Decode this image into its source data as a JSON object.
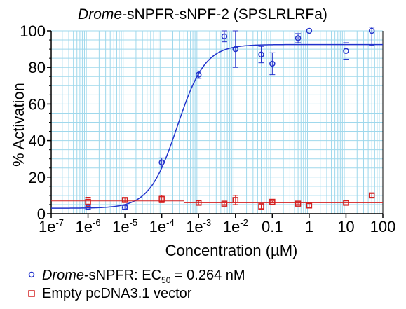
{
  "chart_data": {
    "type": "scatter",
    "title": {
      "italic": "Drome",
      "rest": "-sNPFR-sNPF-2 (SPSLRLRFa)"
    },
    "xlabel": "Concentration (µM)",
    "ylabel": "% Activation",
    "x_scale": "log",
    "xlim": [
      1e-07,
      100
    ],
    "ylim": [
      0,
      100
    ],
    "x_ticks": [
      {
        "base": "1e",
        "exp": "-7",
        "label": ""
      },
      {
        "base": "1e",
        "exp": "-6",
        "label": ""
      },
      {
        "base": "1e",
        "exp": "-5",
        "label": ""
      },
      {
        "base": "1e",
        "exp": "-4",
        "label": ""
      },
      {
        "base": "1e",
        "exp": "-3",
        "label": ""
      },
      {
        "base": "1e",
        "exp": "-2",
        "label": ""
      },
      {
        "base": "",
        "exp": "",
        "label": "0.1"
      },
      {
        "base": "",
        "exp": "",
        "label": "1"
      },
      {
        "base": "",
        "exp": "",
        "label": "10"
      },
      {
        "base": "",
        "exp": "",
        "label": "100"
      }
    ],
    "x_tick_values": [
      1e-07,
      1e-06,
      1e-05,
      0.0001,
      0.001,
      0.01,
      0.1,
      1,
      10,
      100
    ],
    "y_ticks": [
      "0",
      "20",
      "40",
      "60",
      "80",
      "100"
    ],
    "y_tick_values": [
      0,
      20,
      40,
      60,
      80,
      100
    ],
    "grid": true,
    "legend_position": "bottom-left",
    "colors": {
      "grid": "#9fd8ec",
      "series1": "#2233cc",
      "series2": "#d42020"
    },
    "series": [
      {
        "name_italic": "Drome",
        "name_rest": "-sNPFR: EC",
        "name_sub": "50",
        "name_tail": " = 0.264 nM",
        "marker": "circle",
        "x": [
          1e-06,
          1e-05,
          0.0001,
          0.001,
          0.005,
          0.01,
          0.05,
          0.1,
          0.5,
          1,
          10,
          50
        ],
        "y": [
          3.5,
          3.5,
          28,
          76,
          97,
          90,
          87,
          82,
          96,
          100,
          89,
          100
        ],
        "err": [
          1.0,
          1.0,
          2.5,
          2.0,
          3.0,
          10.0,
          4.5,
          6.0,
          2.5,
          0.0,
          4.5,
          8.0
        ],
        "fit": {
          "bottom": 3,
          "top": 92.5,
          "logEC50": -3.578,
          "hill": 1.15
        }
      },
      {
        "name": "Empty pcDNA3.1 vector",
        "marker": "square",
        "x": [
          1e-06,
          1e-05,
          0.0001,
          0.001,
          0.005,
          0.01,
          0.05,
          0.1,
          0.5,
          1,
          10,
          50
        ],
        "y": [
          6.5,
          7.5,
          8,
          6,
          5.5,
          7.5,
          4,
          6.5,
          5.5,
          4.5,
          6,
          10
        ],
        "err": [
          2.5,
          1.0,
          2.0,
          1.0,
          0.5,
          2.5,
          1.5,
          0.5,
          0.5,
          1.0,
          1.0,
          1.0
        ],
        "fit_segments": [
          {
            "x": [
              1e-07,
              0.0004
            ],
            "y": [
              7,
              7
            ]
          },
          {
            "x": [
              0.0004,
              100
            ],
            "y": [
              6,
              6
            ]
          }
        ]
      }
    ]
  }
}
